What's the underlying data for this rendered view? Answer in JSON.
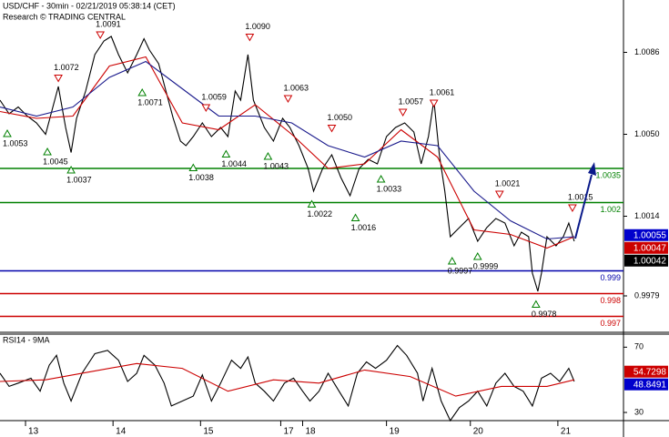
{
  "chart_data": [
    {
      "type": "line",
      "title": "USD/CHF - 30min - 02/21/2019 05:38:14 (CET)",
      "subtitle": "Research © TRADING CENTRAL",
      "xlim": [
        0,
        342
      ],
      "ylim": [
        0.9963,
        1.0109
      ],
      "yticks": [
        1.0086,
        {
          "value": 1.005,
          "label": "1.0050"
        },
        1.0014,
        0.9979
      ],
      "series": [
        {
          "color": "#000000",
          "x": [
            0,
            5,
            10,
            15,
            20,
            25,
            30,
            32,
            36,
            39,
            42,
            47,
            52,
            57,
            61,
            65,
            70,
            75,
            79,
            82,
            87,
            91,
            95,
            99,
            102,
            106,
            111,
            116,
            121,
            125,
            129,
            132,
            136,
            139,
            145,
            150,
            155,
            159,
            164,
            169,
            172,
            177,
            182,
            187,
            192,
            197,
            202,
            207,
            212,
            217,
            222,
            227,
            231,
            235,
            238,
            241,
            244,
            247,
            252,
            257,
            262,
            267,
            272,
            277,
            282,
            286,
            290,
            292,
            295,
            297,
            300,
            305,
            309,
            312,
            315
          ],
          "values": [
            1.0065,
            1.0059,
            1.0062,
            1.0058,
            1.0055,
            1.005,
            1.0065,
            1.0071,
            1.0053,
            1.0042,
            1.0057,
            1.0069,
            1.0085,
            1.0091,
            1.0093,
            1.0085,
            1.0077,
            1.0085,
            1.0092,
            1.0087,
            1.0081,
            1.0069,
            1.0057,
            1.0047,
            1.0045,
            1.0049,
            1.0055,
            1.0049,
            1.0053,
            1.0049,
            1.0069,
            1.0065,
            1.0085,
            1.0065,
            1.0053,
            1.0047,
            1.0057,
            1.0053,
            1.0045,
            1.0035,
            1.0025,
            1.0035,
            1.0041,
            1.0031,
            1.0023,
            1.0035,
            1.0039,
            1.0037,
            1.0049,
            1.0053,
            1.0055,
            1.0051,
            1.0037,
            1.0049,
            1.0065,
            1.0041,
            1.0025,
            1.0005,
            1.0009,
            1.0013,
            1.0003,
            1.0009,
            1.0013,
            1.0011,
            1.0001,
            1.0007,
            1.0005,
            0.9989,
            0.9981,
            0.9989,
            1.0005,
            1.0001,
            1.0005,
            1.0011,
            1.0003
          ]
        },
        {
          "color": "#cc0000",
          "x": [
            0,
            20,
            40,
            60,
            80,
            100,
            120,
            140,
            160,
            180,
            200,
            220,
            240,
            260,
            280,
            300,
            315
          ],
          "values": [
            1.006,
            1.0057,
            1.0058,
            1.008,
            1.0084,
            1.0055,
            1.0052,
            1.0063,
            1.005,
            1.0035,
            1.0037,
            1.0052,
            1.004,
            1.0008,
            1.0006,
            1.0,
            1.0005
          ]
        },
        {
          "color": "#1a1a8c",
          "x": [
            0,
            20,
            40,
            60,
            80,
            100,
            120,
            140,
            160,
            180,
            200,
            220,
            240,
            260,
            280,
            300,
            315
          ],
          "values": [
            1.0062,
            1.0058,
            1.0062,
            1.0075,
            1.0082,
            1.007,
            1.0058,
            1.0058,
            1.0055,
            1.0045,
            1.004,
            1.0047,
            1.0045,
            1.0025,
            1.0012,
            1.0004,
            1.0005
          ]
        }
      ],
      "levels": [
        {
          "value": 1.0035,
          "color": "#008000"
        },
        {
          "value": 1.002,
          "color": "#008000"
        },
        {
          "value": 0.999,
          "color": "#0000aa"
        },
        {
          "value": 0.998,
          "color": "#cc0000"
        },
        {
          "value": 0.997,
          "color": "#cc0000"
        }
      ],
      "price_tags": [
        {
          "value": 1.00055,
          "color": "#0000cc"
        },
        {
          "value": 1.00047,
          "color": "#cc0000"
        },
        {
          "value": 1.00042,
          "color": "#000000"
        }
      ],
      "highs": {
        "color": "#cc0000",
        "x": [
          55,
          32,
          113,
          137,
          158,
          182,
          221,
          238,
          274,
          314
        ],
        "values": [
          1.0091,
          1.0072,
          1.0059,
          1.009,
          1.0063,
          1.005,
          1.0057,
          1.0061,
          1.0021,
          1.0015
        ],
        "value_labels": [
          "1.0091",
          "1.0072",
          "1.0059",
          "1.0090",
          "1.0063",
          "1.0050",
          "1.0057",
          "1.0061",
          "1.0021",
          "1.0015"
        ]
      },
      "lows": {
        "color": "#008000",
        "x": [
          4,
          26,
          39,
          78,
          106,
          124,
          147,
          171,
          195,
          209,
          248,
          262,
          294
        ],
        "values": [
          1.0053,
          1.0045,
          1.0037,
          1.0071,
          1.0038,
          1.0044,
          1.0043,
          1.0022,
          1.0016,
          1.0033,
          0.9997,
          0.9999,
          0.9978
        ],
        "value_labels": [
          "1.0053",
          "1.0045",
          "1.0037",
          "1.0071",
          "1.0038",
          "1.0044",
          "1.0043",
          "1.0022",
          "1.0016",
          "1.0033",
          "0.9997",
          "0.9999",
          "0.9978"
        ]
      }
    },
    {
      "type": "line",
      "title": "RSI14 - 9MA",
      "xlim": [
        0,
        342
      ],
      "ylim": [
        25,
        78
      ],
      "yticks": [
        70,
        30
      ],
      "xticks": [
        {
          "value": 14,
          "label": "13"
        },
        {
          "value": 62,
          "label": "14"
        },
        {
          "value": 110,
          "label": "15"
        },
        {
          "value": 154,
          "label": "17"
        },
        {
          "value": 166,
          "label": "18"
        },
        {
          "value": 212,
          "label": "19"
        },
        {
          "value": 258,
          "label": "20"
        },
        {
          "value": 306,
          "label": "21"
        }
      ],
      "series": [
        {
          "color": "#000000",
          "x": [
            0,
            5,
            10,
            17,
            22,
            27,
            31,
            35,
            39,
            45,
            52,
            59,
            65,
            70,
            75,
            79,
            85,
            90,
            94,
            100,
            106,
            111,
            116,
            121,
            127,
            132,
            136,
            140,
            145,
            150,
            156,
            161,
            166,
            170,
            175,
            180,
            186,
            191,
            196,
            201,
            206,
            212,
            218,
            223,
            229,
            232,
            237,
            242,
            247,
            252,
            257,
            262,
            267,
            272,
            277,
            282,
            287,
            292,
            297,
            302,
            307,
            312,
            315
          ],
          "values": [
            54,
            46,
            48,
            51,
            43,
            59,
            65,
            48,
            37,
            54,
            66,
            68,
            62,
            49,
            54,
            65,
            59,
            48,
            34,
            37,
            40,
            53,
            37,
            48,
            62,
            57,
            64,
            48,
            43,
            37,
            48,
            51,
            43,
            37,
            43,
            54,
            43,
            34,
            54,
            61,
            57,
            62,
            71,
            65,
            54,
            37,
            57,
            37,
            25,
            33,
            37,
            43,
            34,
            48,
            54,
            46,
            43,
            34,
            51,
            54,
            49,
            57,
            49
          ]
        },
        {
          "color": "#cc0000",
          "x": [
            0,
            25,
            50,
            75,
            100,
            125,
            150,
            175,
            200,
            225,
            250,
            275,
            300,
            315
          ],
          "values": [
            49,
            50,
            55,
            60,
            57,
            43,
            50,
            48,
            56,
            52,
            40,
            46,
            46,
            50
          ]
        }
      ],
      "tags": [
        {
          "value": 54.7298,
          "color": "#cc0000"
        },
        {
          "value": 48.8491,
          "color": "#0000cc"
        }
      ]
    }
  ]
}
